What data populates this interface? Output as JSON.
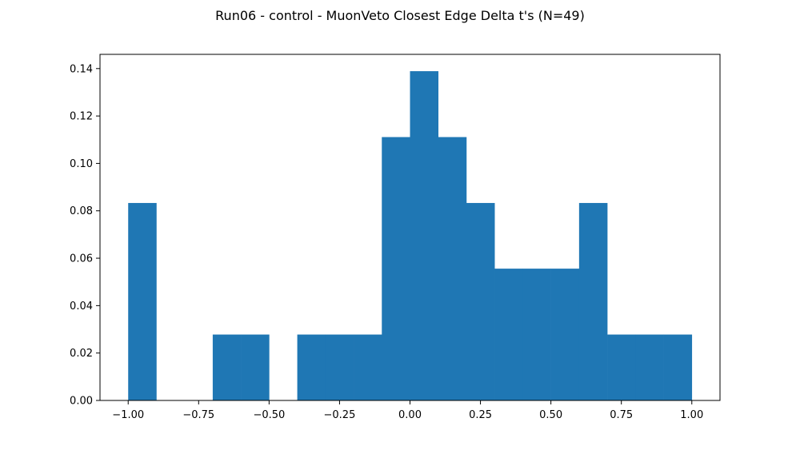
{
  "chart_data": {
    "type": "bar",
    "title": "Run06 - control - MuonVeto Closest Edge Delta t's (N=49)",
    "xlabel": "",
    "ylabel": "",
    "xlim": [
      -1.1,
      1.1
    ],
    "ylim": [
      0,
      0.146
    ],
    "xticks": [
      -1.0,
      -0.75,
      -0.5,
      -0.25,
      0.0,
      0.25,
      0.5,
      0.75,
      1.0
    ],
    "xtick_labels": [
      "−1.00",
      "−0.75",
      "−0.50",
      "−0.25",
      "0.00",
      "0.25",
      "0.50",
      "0.75",
      "1.00"
    ],
    "yticks": [
      0.0,
      0.02,
      0.04,
      0.06,
      0.08,
      0.1,
      0.12,
      0.14
    ],
    "ytick_labels": [
      "0.00",
      "0.02",
      "0.04",
      "0.06",
      "0.08",
      "0.10",
      "0.12",
      "0.14"
    ],
    "bin_edges": [
      -1.0,
      -0.9,
      -0.8,
      -0.7,
      -0.6,
      -0.5,
      -0.4,
      -0.3,
      -0.2,
      -0.1,
      0.0,
      0.1,
      0.2,
      0.3,
      0.4,
      0.5,
      0.6,
      0.7,
      0.8,
      0.9,
      1.0
    ],
    "values": [
      0.0833,
      0.0,
      0.0,
      0.0278,
      0.0278,
      0.0,
      0.0278,
      0.0278,
      0.0278,
      0.1111,
      0.1389,
      0.1111,
      0.0833,
      0.0556,
      0.0556,
      0.0556,
      0.0833,
      0.0278,
      0.0278,
      0.0278
    ],
    "bar_color": "#1f77b4",
    "grid": false,
    "legend": "none"
  }
}
